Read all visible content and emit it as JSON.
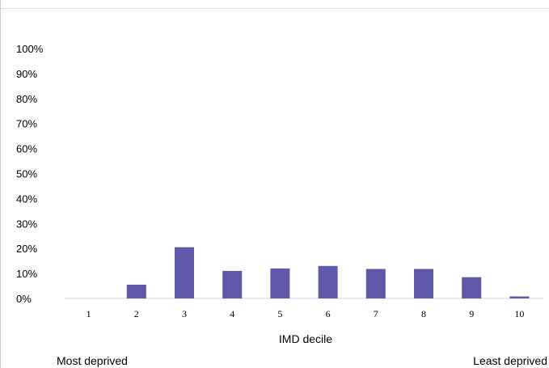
{
  "chart_data": {
    "type": "bar",
    "title": "",
    "xlabel": "IMD decile",
    "ylabel": "",
    "categories": [
      "1",
      "2",
      "3",
      "4",
      "5",
      "6",
      "7",
      "8",
      "9",
      "10"
    ],
    "values": [
      0,
      5.5,
      20.5,
      11,
      12,
      13,
      11.8,
      11.8,
      8.5,
      0.8
    ],
    "ylim": [
      0,
      100
    ],
    "ytick_labels": [
      "0%",
      "10%",
      "20%",
      "30%",
      "40%",
      "50%",
      "60%",
      "70%",
      "80%",
      "90%",
      "100%"
    ],
    "bar_color": "#6058a8",
    "grid": false,
    "legend": "none",
    "left_end_label": "Most deprived",
    "right_end_label": "Least deprived"
  }
}
